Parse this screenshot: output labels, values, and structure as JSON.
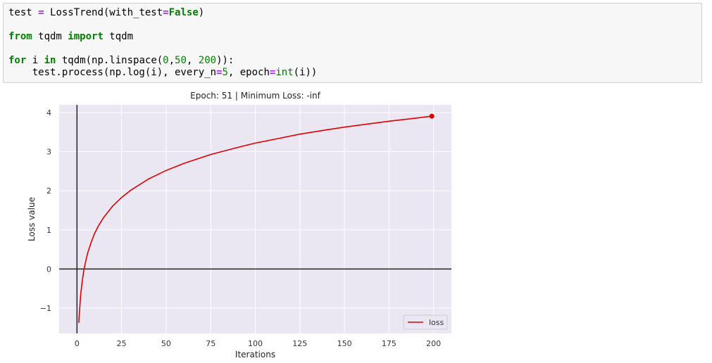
{
  "code_cell": {
    "lines": [
      [
        {
          "t": "test ",
          "c": "plain"
        },
        {
          "t": "=",
          "c": "op"
        },
        {
          "t": " LossTrend(with_test",
          "c": "plain"
        },
        {
          "t": "=",
          "c": "op"
        },
        {
          "t": "False",
          "c": "bool"
        },
        {
          "t": ")",
          "c": "plain"
        }
      ],
      [],
      [
        {
          "t": "from",
          "c": "kw"
        },
        {
          "t": " tqdm ",
          "c": "plain"
        },
        {
          "t": "import",
          "c": "kw"
        },
        {
          "t": " tqdm",
          "c": "plain"
        }
      ],
      [],
      [
        {
          "t": "for",
          "c": "kw"
        },
        {
          "t": " i ",
          "c": "plain"
        },
        {
          "t": "in",
          "c": "kw"
        },
        {
          "t": " tqdm(np.linspace(",
          "c": "plain"
        },
        {
          "t": "0",
          "c": "num"
        },
        {
          "t": ",",
          "c": "plain"
        },
        {
          "t": "50",
          "c": "num"
        },
        {
          "t": ", ",
          "c": "plain"
        },
        {
          "t": "200",
          "c": "num"
        },
        {
          "t": ")):",
          "c": "plain"
        }
      ],
      [
        {
          "t": "    test.process(np.log(i), every_n",
          "c": "plain"
        },
        {
          "t": "=",
          "c": "op"
        },
        {
          "t": "5",
          "c": "num"
        },
        {
          "t": ", epoch",
          "c": "plain"
        },
        {
          "t": "=",
          "c": "op"
        },
        {
          "t": "int",
          "c": "bi"
        },
        {
          "t": "(i))",
          "c": "plain"
        }
      ]
    ]
  },
  "chart_data": {
    "type": "line",
    "title": "Epoch: 51 | Minimum Loss: -inf",
    "xlabel": "Iterations",
    "ylabel": "Loss value",
    "xlim": [
      -10,
      210
    ],
    "ylim": [
      -1.65,
      4.2
    ],
    "xticks": [
      0,
      25,
      50,
      75,
      100,
      125,
      150,
      175,
      200
    ],
    "xtick_labels": [
      "0",
      "25",
      "50",
      "75",
      "100",
      "125",
      "150",
      "175",
      "200"
    ],
    "yticks": [
      -1,
      0,
      1,
      2,
      3,
      4
    ],
    "ytick_labels": [
      "−1",
      "0",
      "1",
      "2",
      "3",
      "4"
    ],
    "grid": true,
    "legend": "lower-right",
    "background": "#eae6f2",
    "series": [
      {
        "name": "loss",
        "color": "#e00000",
        "x": [
          1,
          2,
          3,
          4,
          5,
          6,
          8,
          10,
          12,
          15,
          20,
          25,
          30,
          40,
          50,
          60,
          75,
          90,
          100,
          110,
          125,
          140,
          150,
          160,
          175,
          190,
          199
        ],
        "y": [
          -1.38,
          -0.69,
          -0.29,
          0.0,
          0.22,
          0.41,
          0.69,
          0.92,
          1.1,
          1.32,
          1.61,
          1.83,
          2.01,
          2.3,
          2.52,
          2.7,
          2.93,
          3.11,
          3.22,
          3.31,
          3.45,
          3.56,
          3.63,
          3.69,
          3.78,
          3.86,
          3.91
        ]
      }
    ],
    "last_point_marker": true
  }
}
